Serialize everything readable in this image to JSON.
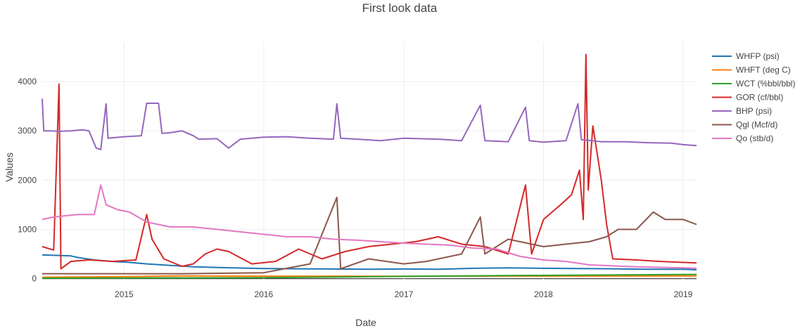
{
  "chart_data": {
    "type": "line",
    "title": "First look data",
    "xlabel": "Date",
    "ylabel": "Values",
    "xlim": [
      "2014-06-01",
      "2019-02-05"
    ],
    "ylim": [
      -20,
      4800
    ],
    "xticks": [
      "2015-01-01",
      "2016-01-01",
      "2017-01-01",
      "2018-01-01",
      "2019-01-01"
    ],
    "xtick_labels": [
      "2015",
      "2016",
      "2017",
      "2018",
      "2019"
    ],
    "yticks": [
      0,
      1000,
      2000,
      3000,
      4000
    ],
    "ytick_labels": [
      "0",
      "1000",
      "2000",
      "3000",
      "4000"
    ],
    "grid": true,
    "legend_position": "right",
    "series": [
      {
        "name": "WHFP (psi)",
        "color": "#1f77b4",
        "points": [
          [
            "2014-06-01",
            480
          ],
          [
            "2014-07-15",
            470
          ],
          [
            "2014-08-15",
            460
          ],
          [
            "2014-09-01",
            430
          ],
          [
            "2014-10-15",
            380
          ],
          [
            "2014-12-01",
            350
          ],
          [
            "2015-01-15",
            330
          ],
          [
            "2015-03-01",
            300
          ],
          [
            "2015-05-01",
            270
          ],
          [
            "2015-07-01",
            240
          ],
          [
            "2015-09-01",
            225
          ],
          [
            "2015-11-01",
            215
          ],
          [
            "2016-01-01",
            205
          ],
          [
            "2016-04-01",
            200
          ],
          [
            "2016-07-01",
            195
          ],
          [
            "2016-10-01",
            190
          ],
          [
            "2017-01-01",
            195
          ],
          [
            "2017-04-01",
            190
          ],
          [
            "2017-07-01",
            210
          ],
          [
            "2017-10-01",
            220
          ],
          [
            "2018-01-01",
            210
          ],
          [
            "2018-04-01",
            205
          ],
          [
            "2018-07-01",
            200
          ],
          [
            "2018-10-01",
            190
          ],
          [
            "2019-01-01",
            190
          ],
          [
            "2019-02-05",
            180
          ]
        ]
      },
      {
        "name": "WHFT (deg C)",
        "color": "#ff7f0e",
        "points": [
          [
            "2014-06-01",
            28
          ],
          [
            "2015-01-01",
            40
          ],
          [
            "2015-06-01",
            55
          ],
          [
            "2016-01-01",
            50
          ],
          [
            "2017-01-01",
            48
          ],
          [
            "2018-01-01",
            52
          ],
          [
            "2019-02-05",
            55
          ]
        ]
      },
      {
        "name": "WCT (%bbl/bbl)",
        "color": "#2ca02c",
        "points": [
          [
            "2014-06-01",
            8
          ],
          [
            "2015-01-01",
            12
          ],
          [
            "2016-01-01",
            20
          ],
          [
            "2016-10-01",
            40
          ],
          [
            "2017-06-01",
            55
          ],
          [
            "2018-01-01",
            65
          ],
          [
            "2018-08-01",
            75
          ],
          [
            "2019-02-05",
            85
          ]
        ]
      },
      {
        "name": "GOR (cf/bbl)",
        "color": "#d62728",
        "points": [
          [
            "2014-06-01",
            650
          ],
          [
            "2014-07-01",
            580
          ],
          [
            "2014-07-15",
            3950
          ],
          [
            "2014-07-20",
            200
          ],
          [
            "2014-08-15",
            350
          ],
          [
            "2014-10-01",
            380
          ],
          [
            "2014-12-01",
            350
          ],
          [
            "2015-02-01",
            380
          ],
          [
            "2015-03-01",
            1300
          ],
          [
            "2015-03-15",
            800
          ],
          [
            "2015-04-15",
            400
          ],
          [
            "2015-06-01",
            250
          ],
          [
            "2015-07-01",
            300
          ],
          [
            "2015-08-01",
            500
          ],
          [
            "2015-09-01",
            600
          ],
          [
            "2015-10-01",
            550
          ],
          [
            "2015-12-01",
            300
          ],
          [
            "2016-02-01",
            350
          ],
          [
            "2016-04-01",
            600
          ],
          [
            "2016-06-01",
            400
          ],
          [
            "2016-08-01",
            550
          ],
          [
            "2016-10-01",
            650
          ],
          [
            "2016-12-01",
            700
          ],
          [
            "2017-02-01",
            750
          ],
          [
            "2017-04-01",
            850
          ],
          [
            "2017-06-01",
            700
          ],
          [
            "2017-08-01",
            650
          ],
          [
            "2017-10-01",
            500
          ],
          [
            "2017-11-15",
            1900
          ],
          [
            "2017-12-01",
            500
          ],
          [
            "2018-01-01",
            1200
          ],
          [
            "2018-02-15",
            1500
          ],
          [
            "2018-03-15",
            1700
          ],
          [
            "2018-04-05",
            2200
          ],
          [
            "2018-04-15",
            1200
          ],
          [
            "2018-04-22",
            4550
          ],
          [
            "2018-04-28",
            1800
          ],
          [
            "2018-05-10",
            3100
          ],
          [
            "2018-05-20",
            2600
          ],
          [
            "2018-06-01",
            2000
          ],
          [
            "2018-06-15",
            1100
          ],
          [
            "2018-07-01",
            400
          ],
          [
            "2018-09-01",
            380
          ],
          [
            "2018-11-01",
            350
          ],
          [
            "2019-01-01",
            330
          ],
          [
            "2019-02-05",
            320
          ]
        ]
      },
      {
        "name": "BHP (psi)",
        "color": "#9467bd",
        "points": [
          [
            "2014-06-01",
            3650
          ],
          [
            "2014-06-05",
            3000
          ],
          [
            "2014-06-20",
            3000
          ],
          [
            "2014-07-15",
            2990
          ],
          [
            "2014-08-15",
            3000
          ],
          [
            "2014-09-15",
            3020
          ],
          [
            "2014-10-01",
            3000
          ],
          [
            "2014-10-20",
            2650
          ],
          [
            "2014-11-01",
            2620
          ],
          [
            "2014-11-15",
            3550
          ],
          [
            "2014-11-20",
            2850
          ],
          [
            "2015-01-01",
            2880
          ],
          [
            "2015-02-15",
            2900
          ],
          [
            "2015-03-01",
            3560
          ],
          [
            "2015-04-01",
            3560
          ],
          [
            "2015-04-10",
            2950
          ],
          [
            "2015-05-01",
            2960
          ],
          [
            "2015-06-01",
            3000
          ],
          [
            "2015-07-01",
            2900
          ],
          [
            "2015-07-15",
            2830
          ],
          [
            "2015-09-01",
            2840
          ],
          [
            "2015-10-01",
            2650
          ],
          [
            "2015-11-01",
            2830
          ],
          [
            "2016-01-01",
            2870
          ],
          [
            "2016-03-01",
            2880
          ],
          [
            "2016-05-01",
            2850
          ],
          [
            "2016-07-01",
            2830
          ],
          [
            "2016-07-10",
            3550
          ],
          [
            "2016-07-20",
            2850
          ],
          [
            "2016-09-01",
            2830
          ],
          [
            "2016-11-01",
            2800
          ],
          [
            "2017-01-01",
            2850
          ],
          [
            "2017-04-01",
            2830
          ],
          [
            "2017-06-01",
            2800
          ],
          [
            "2017-07-20",
            3520
          ],
          [
            "2017-08-01",
            2800
          ],
          [
            "2017-09-01",
            2790
          ],
          [
            "2017-10-01",
            2780
          ],
          [
            "2017-11-15",
            3480
          ],
          [
            "2017-11-25",
            2800
          ],
          [
            "2018-01-01",
            2770
          ],
          [
            "2018-03-01",
            2800
          ],
          [
            "2018-04-01",
            3550
          ],
          [
            "2018-04-10",
            2820
          ],
          [
            "2018-06-01",
            2780
          ],
          [
            "2018-08-01",
            2780
          ],
          [
            "2018-10-01",
            2760
          ],
          [
            "2018-12-01",
            2750
          ],
          [
            "2019-01-01",
            2720
          ],
          [
            "2019-02-05",
            2700
          ]
        ]
      },
      {
        "name": "Qgl (Mcf/d)",
        "color": "#8c564b",
        "points": [
          [
            "2014-06-01",
            100
          ],
          [
            "2015-01-01",
            100
          ],
          [
            "2015-06-01",
            100
          ],
          [
            "2016-01-01",
            120
          ],
          [
            "2016-05-01",
            300
          ],
          [
            "2016-07-10",
            1650
          ],
          [
            "2016-07-20",
            200
          ],
          [
            "2016-10-01",
            400
          ],
          [
            "2017-01-01",
            300
          ],
          [
            "2017-03-01",
            350
          ],
          [
            "2017-06-01",
            500
          ],
          [
            "2017-07-20",
            1250
          ],
          [
            "2017-08-01",
            500
          ],
          [
            "2017-10-01",
            800
          ],
          [
            "2017-12-01",
            700
          ],
          [
            "2018-01-01",
            650
          ],
          [
            "2018-03-01",
            700
          ],
          [
            "2018-05-01",
            750
          ],
          [
            "2018-06-15",
            850
          ],
          [
            "2018-07-15",
            1000
          ],
          [
            "2018-09-01",
            1000
          ],
          [
            "2018-10-15",
            1350
          ],
          [
            "2018-11-15",
            1200
          ],
          [
            "2019-01-01",
            1200
          ],
          [
            "2019-02-05",
            1100
          ]
        ]
      },
      {
        "name": "Qo (stb/d)",
        "color": "#e377c2",
        "points": [
          [
            "2014-06-01",
            1200
          ],
          [
            "2014-07-01",
            1250
          ],
          [
            "2014-09-01",
            1300
          ],
          [
            "2014-10-15",
            1300
          ],
          [
            "2014-11-01",
            1900
          ],
          [
            "2014-11-15",
            1500
          ],
          [
            "2014-12-15",
            1400
          ],
          [
            "2015-01-15",
            1350
          ],
          [
            "2015-03-01",
            1150
          ],
          [
            "2015-05-01",
            1050
          ],
          [
            "2015-07-01",
            1050
          ],
          [
            "2015-09-01",
            1000
          ],
          [
            "2015-11-01",
            950
          ],
          [
            "2016-01-01",
            900
          ],
          [
            "2016-03-01",
            850
          ],
          [
            "2016-05-01",
            850
          ],
          [
            "2016-07-01",
            800
          ],
          [
            "2016-09-01",
            780
          ],
          [
            "2016-11-01",
            750
          ],
          [
            "2017-01-01",
            720
          ],
          [
            "2017-03-01",
            700
          ],
          [
            "2017-05-01",
            680
          ],
          [
            "2017-07-01",
            620
          ],
          [
            "2017-09-01",
            600
          ],
          [
            "2017-11-01",
            450
          ],
          [
            "2018-01-01",
            380
          ],
          [
            "2018-03-01",
            350
          ],
          [
            "2018-05-01",
            280
          ],
          [
            "2018-07-01",
            260
          ],
          [
            "2018-09-01",
            240
          ],
          [
            "2018-11-01",
            230
          ],
          [
            "2019-01-01",
            220
          ],
          [
            "2019-02-05",
            210
          ]
        ]
      }
    ]
  }
}
